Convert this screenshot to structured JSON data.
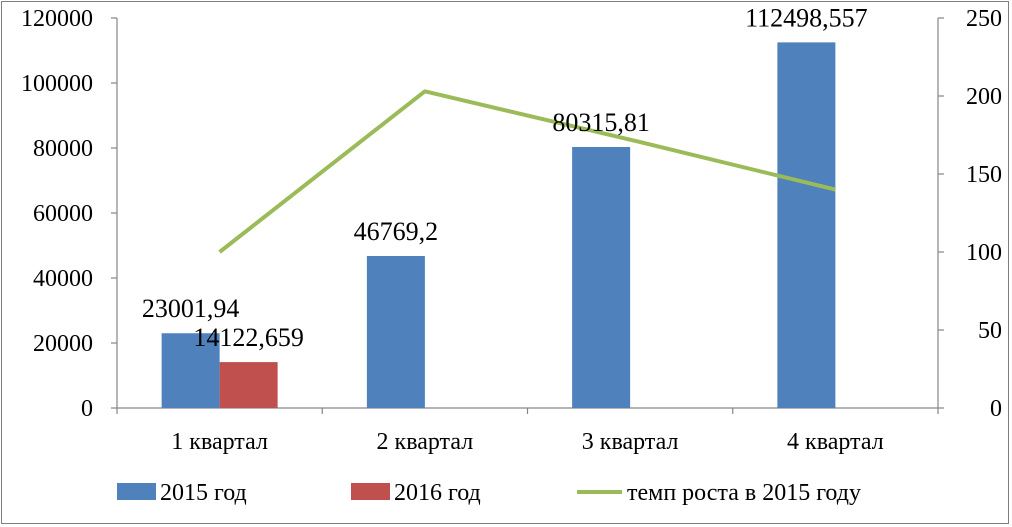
{
  "chart_data": {
    "type": "bar",
    "categories": [
      "1 квартал",
      "2 квартал",
      "3 квартал",
      "4 квартал"
    ],
    "series": [
      {
        "name": "2015 год",
        "kind": "bar",
        "axis": "left",
        "color": "#4f81bd",
        "values": [
          23001.94,
          46769.2,
          80315.81,
          112498.557
        ],
        "labels": [
          "23001,94",
          "46769,2",
          "80315,81",
          "112498,557"
        ]
      },
      {
        "name": "2016 год",
        "kind": "bar",
        "axis": "left",
        "color": "#c0504d",
        "values": [
          14122.659,
          null,
          null,
          null
        ],
        "labels": [
          "14122,659",
          null,
          null,
          null
        ]
      },
      {
        "name": "темп роста в 2015 году",
        "kind": "line",
        "axis": "right",
        "color": "#9bbb59",
        "values": [
          100,
          203,
          172,
          140
        ]
      }
    ],
    "yleft": {
      "ylim": [
        0,
        120000
      ],
      "ticks": [
        "0",
        "20000",
        "40000",
        "60000",
        "80000",
        "100000",
        "120000"
      ]
    },
    "yright": {
      "ylim": [
        0,
        250
      ],
      "ticks": [
        "0",
        "50",
        "100",
        "150",
        "200",
        "250"
      ]
    },
    "grid": false,
    "legend": "bottom",
    "title": "",
    "xlabel": "",
    "ylabel": ""
  }
}
